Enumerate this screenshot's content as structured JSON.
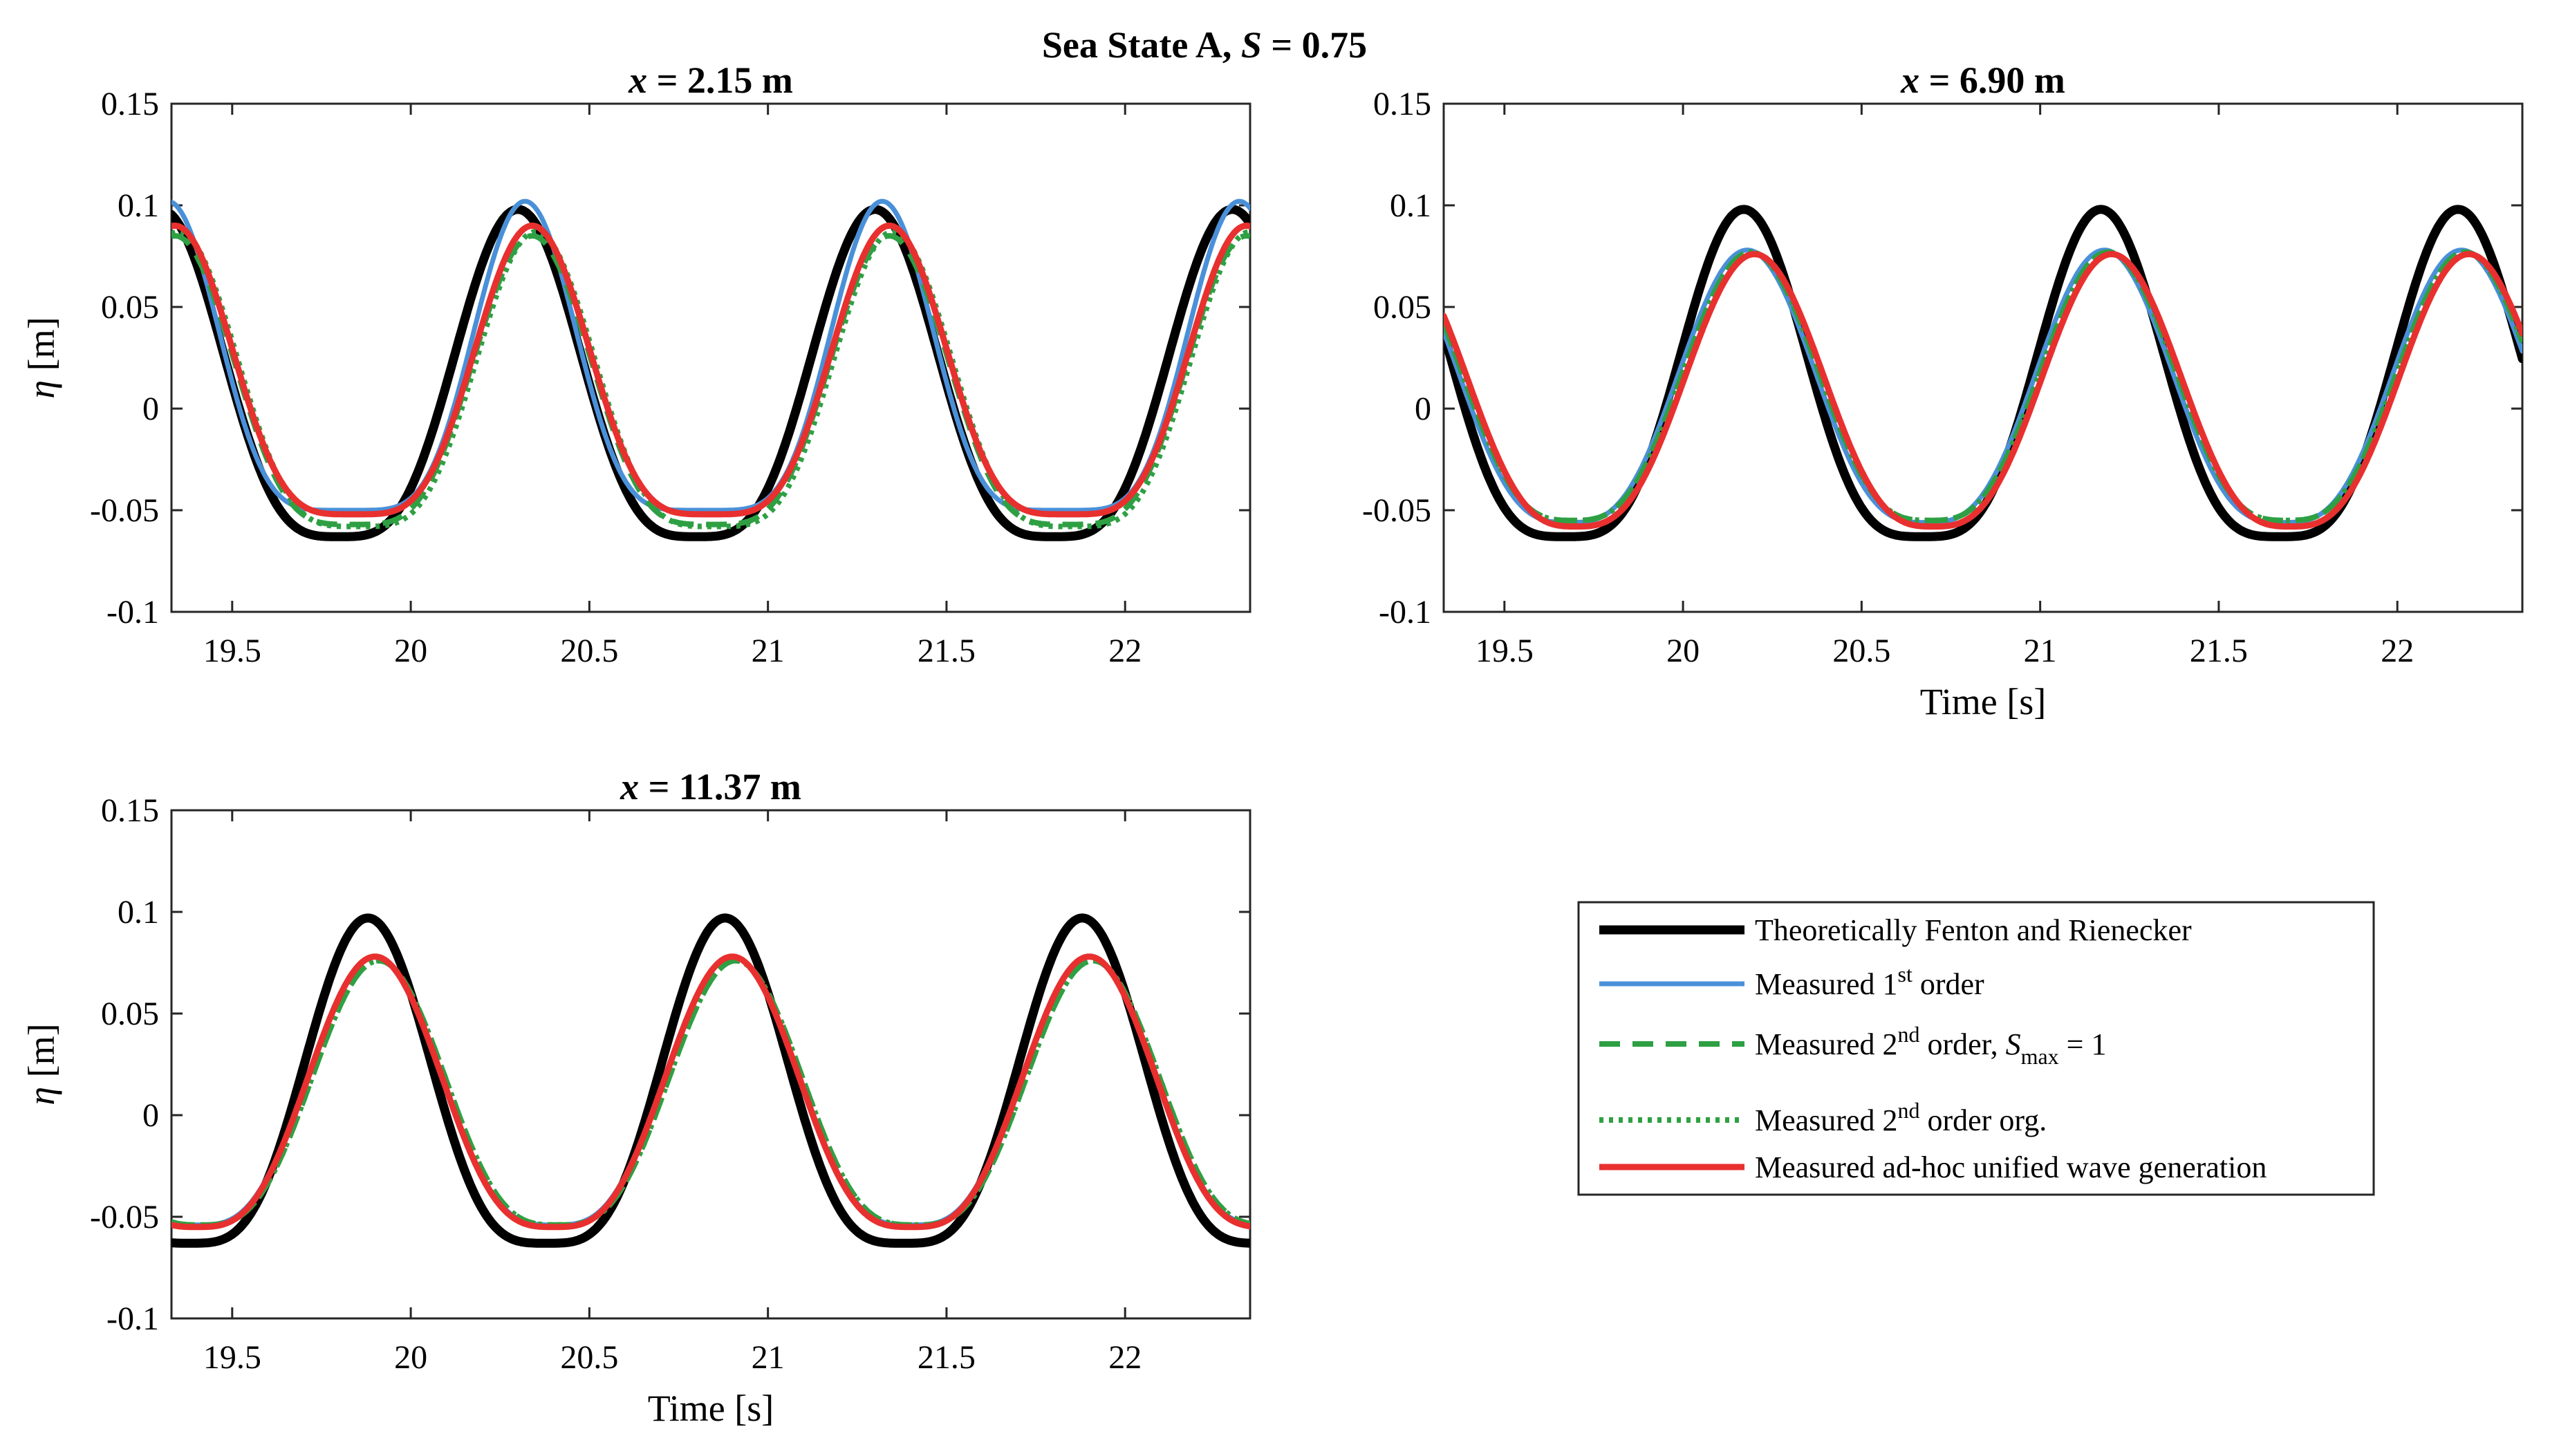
{
  "figure": {
    "title": "Sea State A, S = 0.75",
    "title_parts": {
      "prefix": "Sea State A, ",
      "var": "S",
      "suffix": " = 0.75"
    }
  },
  "colors": {
    "theory": "#000000",
    "first_order": "#4a90d9",
    "second_order": "#2ea043",
    "second_order_org": "#2ea043",
    "adhoc": "#e8302f"
  },
  "legend": {
    "location": "right, below top-right panel",
    "entries": [
      {
        "key": "theory",
        "text": "Theoretically Fenton and Rienecker",
        "style": "solid-thick"
      },
      {
        "key": "first_order",
        "pre": "Measured 1",
        "sup": "st",
        "post": " order",
        "style": "solid"
      },
      {
        "key": "second_order",
        "pre": "Measured 2",
        "sup": "nd",
        "post": " order, ",
        "var": "S",
        "sub": "max",
        "tail": " = 1",
        "style": "dashed"
      },
      {
        "key": "second_order_org",
        "pre": "Measured 2",
        "sup": "nd",
        "post": " order org.",
        "style": "dotted"
      },
      {
        "key": "adhoc",
        "text": "Measured ad-hoc unified wave generation",
        "style": "solid"
      }
    ]
  },
  "chart_data": [
    {
      "type": "line",
      "title": "x  = 2.15 m",
      "title_var": "x",
      "title_rest": "  = 2.15 m",
      "xlabel": "",
      "ylabel": "η [m]",
      "xlim": [
        19.33,
        22.35
      ],
      "ylim": [
        -0.1,
        0.15
      ],
      "xticks": [
        19.5,
        20,
        20.5,
        21,
        21.5,
        22
      ],
      "xtick_labels": [
        "19.5",
        "20",
        "20.5",
        "21",
        "21.5",
        "22"
      ],
      "yticks": [
        -0.1,
        -0.05,
        0,
        0.05,
        0.1,
        0.15
      ],
      "ytick_labels": [
        "-0.1",
        "-0.05",
        "0",
        "0.05",
        "0.1",
        "0.15"
      ],
      "series": [
        {
          "key": "theory",
          "name": "Theoretically Fenton and Rienecker",
          "crest_t": 20.3,
          "period": 1.0,
          "crest": 0.098,
          "trough": -0.063,
          "shape": 1.8,
          "phase": 0
        },
        {
          "key": "first_order",
          "name": "Measured 1st order",
          "crest_t": 20.32,
          "period": 1.0,
          "crest": 0.102,
          "trough": -0.05,
          "shape": 2.6,
          "phase": 0
        },
        {
          "key": "second_order",
          "name": "Measured 2nd order, Smax = 1",
          "crest_t": 20.34,
          "period": 1.0,
          "crest": 0.085,
          "trough": -0.057,
          "shape": 2.0,
          "phase": 0
        },
        {
          "key": "second_order_org",
          "name": "Measured 2nd order org.",
          "crest_t": 20.35,
          "period": 1.0,
          "crest": 0.087,
          "trough": -0.058,
          "shape": 2.0,
          "phase": 0
        },
        {
          "key": "adhoc",
          "name": "Measured ad-hoc unified wave generation",
          "crest_t": 20.34,
          "period": 1.0,
          "crest": 0.09,
          "trough": -0.052,
          "shape": 2.1,
          "phase": 0
        }
      ]
    },
    {
      "type": "line",
      "title": "x  = 6.90 m",
      "title_var": "x",
      "title_rest": "  = 6.90 m",
      "xlabel": "Time [s]",
      "ylabel": "",
      "xlim": [
        19.33,
        22.35
      ],
      "ylim": [
        -0.1,
        0.15
      ],
      "xticks": [
        19.5,
        20,
        20.5,
        21,
        21.5,
        22
      ],
      "xtick_labels": [
        "19.5",
        "20",
        "20.5",
        "21",
        "21.5",
        "22"
      ],
      "yticks": [
        -0.1,
        -0.05,
        0,
        0.05,
        0.1,
        0.15
      ],
      "ytick_labels": [
        "-0.1",
        "-0.05",
        "0",
        "0.05",
        "0.1",
        "0.15"
      ],
      "series": [
        {
          "key": "theory",
          "name": "Theoretically Fenton and Rienecker",
          "crest_t": 20.17,
          "period": 1.0,
          "crest": 0.098,
          "trough": -0.063,
          "shape": 1.8,
          "phase": 0
        },
        {
          "key": "first_order",
          "name": "Measured 1st order",
          "crest_t": 20.18,
          "period": 1.0,
          "crest": 0.078,
          "trough": -0.056,
          "shape": 1.55,
          "phase": 0
        },
        {
          "key": "second_order",
          "name": "Measured 2nd order, Smax = 1",
          "crest_t": 20.19,
          "period": 1.0,
          "crest": 0.077,
          "trough": -0.055,
          "shape": 1.55,
          "phase": 0
        },
        {
          "key": "second_order_org",
          "name": "Measured 2nd order org.",
          "crest_t": 20.19,
          "period": 1.0,
          "crest": 0.077,
          "trough": -0.055,
          "shape": 1.55,
          "phase": 0
        },
        {
          "key": "adhoc",
          "name": "Measured ad-hoc unified wave generation",
          "crest_t": 20.2,
          "period": 1.0,
          "crest": 0.076,
          "trough": -0.058,
          "shape": 1.5,
          "phase": 0
        }
      ]
    },
    {
      "type": "line",
      "title": "x  = 11.37 m",
      "title_var": "x",
      "title_rest": "  = 11.37 m",
      "xlabel": "Time [s]",
      "ylabel": "η [m]",
      "xlim": [
        19.33,
        22.35
      ],
      "ylim": [
        -0.1,
        0.15
      ],
      "xticks": [
        19.5,
        20,
        20.5,
        21,
        21.5,
        22
      ],
      "xtick_labels": [
        "19.5",
        "20",
        "20.5",
        "21",
        "21.5",
        "22"
      ],
      "yticks": [
        -0.1,
        -0.05,
        0,
        0.05,
        0.1,
        0.15
      ],
      "ytick_labels": [
        "-0.1",
        "-0.05",
        "0",
        "0.05",
        "0.1",
        "0.15"
      ],
      "series": [
        {
          "key": "theory",
          "name": "Theoretically Fenton and Rienecker",
          "crest_t": 19.88,
          "period": 1.0,
          "crest": 0.097,
          "trough": -0.063,
          "shape": 1.8,
          "phase": 0
        },
        {
          "key": "first_order",
          "name": "Measured 1st order",
          "crest_t": 19.9,
          "period": 1.0,
          "crest": 0.078,
          "trough": -0.054,
          "shape": 1.6,
          "phase": 0
        },
        {
          "key": "second_order",
          "name": "Measured 2nd order, Smax = 1",
          "crest_t": 19.91,
          "period": 1.0,
          "crest": 0.076,
          "trough": -0.054,
          "shape": 1.6,
          "phase": 0
        },
        {
          "key": "second_order_org",
          "name": "Measured 2nd order org.",
          "crest_t": 19.91,
          "period": 1.0,
          "crest": 0.076,
          "trough": -0.054,
          "shape": 1.6,
          "phase": 0
        },
        {
          "key": "adhoc",
          "name": "Measured ad-hoc unified wave generation",
          "crest_t": 19.9,
          "period": 1.0,
          "crest": 0.078,
          "trough": -0.055,
          "shape": 1.6,
          "phase": 0
        }
      ]
    }
  ]
}
